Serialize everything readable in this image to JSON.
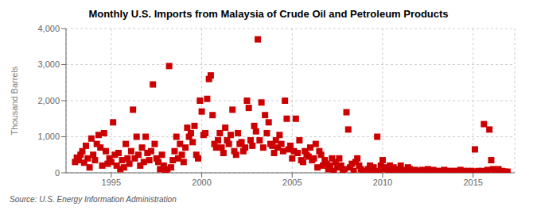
{
  "chart_data": {
    "type": "scatter",
    "title": "Monthly U.S. Imports from Malaysia of Crude Oil and Petroleum Products",
    "ylabel": "Thousand Barrels",
    "annotations": [
      "Source: U.S. Energy Information Administration"
    ],
    "color": "#cc0000",
    "marker": "square",
    "grid": true,
    "xlim": [
      1992.5,
      2017.3
    ],
    "xticks": [
      1995,
      2000,
      2005,
      2010,
      2015
    ],
    "ylim": [
      0,
      4000
    ],
    "yticks": [
      0,
      {
        "value": 1000,
        "label": "1,000"
      },
      {
        "value": 2000,
        "label": "2,000"
      },
      {
        "value": 3000,
        "label": "3,000"
      },
      {
        "value": 4000,
        "label": "4,000"
      }
    ],
    "x": [
      1993.0,
      1993.1,
      1993.2,
      1993.3,
      1993.4,
      1993.5,
      1993.6,
      1993.7,
      1993.8,
      1993.9,
      1994.0,
      1994.1,
      1994.2,
      1994.3,
      1994.4,
      1994.5,
      1994.6,
      1994.7,
      1994.8,
      1994.9,
      1995.0,
      1995.1,
      1995.2,
      1995.3,
      1995.4,
      1995.5,
      1995.6,
      1995.7,
      1995.8,
      1995.9,
      1996.0,
      1996.1,
      1996.2,
      1996.3,
      1996.4,
      1996.5,
      1996.6,
      1996.7,
      1996.8,
      1996.9,
      1997.0,
      1997.1,
      1997.2,
      1997.3,
      1997.4,
      1997.5,
      1997.6,
      1997.7,
      1997.8,
      1997.9,
      1998.0,
      1998.1,
      1998.2,
      1998.3,
      1998.4,
      1998.5,
      1998.6,
      1998.7,
      1998.8,
      1998.9,
      1999.0,
      1999.1,
      1999.2,
      1999.3,
      1999.4,
      1999.5,
      1999.6,
      1999.7,
      1999.8,
      1999.9,
      2000.0,
      2000.1,
      2000.2,
      2000.3,
      2000.4,
      2000.5,
      2000.6,
      2000.7,
      2000.8,
      2000.9,
      2001.0,
      2001.1,
      2001.2,
      2001.3,
      2001.4,
      2001.5,
      2001.6,
      2001.7,
      2001.8,
      2001.9,
      2002.0,
      2002.1,
      2002.2,
      2002.3,
      2002.4,
      2002.5,
      2002.6,
      2002.7,
      2002.8,
      2002.9,
      2003.0,
      2003.1,
      2003.2,
      2003.3,
      2003.4,
      2003.5,
      2003.6,
      2003.7,
      2003.8,
      2003.9,
      2004.0,
      2004.1,
      2004.2,
      2004.3,
      2004.4,
      2004.5,
      2004.6,
      2004.7,
      2004.8,
      2004.9,
      2005.0,
      2005.1,
      2005.2,
      2005.3,
      2005.4,
      2005.5,
      2005.6,
      2005.7,
      2005.8,
      2005.9,
      2006.0,
      2006.1,
      2006.2,
      2006.3,
      2006.4,
      2006.5,
      2006.6,
      2006.7,
      2006.8,
      2006.9,
      2007.0,
      2007.1,
      2007.2,
      2007.3,
      2007.4,
      2007.5,
      2007.6,
      2007.7,
      2007.8,
      2007.9,
      2008.0,
      2008.1,
      2008.2,
      2008.3,
      2008.4,
      2008.5,
      2008.6,
      2008.7,
      2008.8,
      2008.9,
      2009.0,
      2009.1,
      2009.2,
      2009.3,
      2009.4,
      2009.5,
      2009.6,
      2009.7,
      2009.8,
      2009.9,
      2010.0,
      2010.1,
      2010.2,
      2010.3,
      2010.4,
      2010.5,
      2010.6,
      2010.7,
      2010.8,
      2010.9,
      2011.0,
      2011.1,
      2011.2,
      2011.3,
      2011.4,
      2011.5,
      2011.6,
      2011.7,
      2011.8,
      2011.9,
      2012.0,
      2012.1,
      2012.2,
      2012.3,
      2012.4,
      2012.5,
      2012.6,
      2012.7,
      2012.8,
      2012.9,
      2013.0,
      2013.1,
      2013.2,
      2013.3,
      2013.4,
      2013.5,
      2013.6,
      2013.7,
      2013.8,
      2013.9,
      2014.0,
      2014.1,
      2014.2,
      2014.3,
      2014.4,
      2014.5,
      2014.6,
      2014.7,
      2014.8,
      2014.9,
      2015.0,
      2015.1,
      2015.2,
      2015.3,
      2015.4,
      2015.5,
      2015.6,
      2015.7,
      2015.8,
      2015.9,
      2016.0,
      2016.1,
      2016.2,
      2016.3,
      2016.4,
      2016.5,
      2016.6,
      2016.7,
      2016.8,
      2016.9
    ],
    "values": [
      300,
      420,
      350,
      500,
      600,
      280,
      750,
      400,
      150,
      950,
      500,
      350,
      800,
      1050,
      700,
      200,
      1100,
      600,
      250,
      400,
      300,
      1400,
      500,
      200,
      550,
      100,
      350,
      150,
      800,
      400,
      250,
      600,
      1750,
      400,
      1000,
      500,
      200,
      700,
      300,
      1000,
      550,
      350,
      600,
      2450,
      800,
      400,
      300,
      100,
      500,
      200,
      50,
      100,
      2960,
      150,
      350,
      600,
      1000,
      400,
      800,
      500,
      300,
      700,
      1250,
      1000,
      1100,
      850,
      1300,
      500,
      400,
      2000,
      1700,
      1050,
      1100,
      2050,
      2600,
      2700,
      1600,
      800,
      700,
      900,
      1100,
      700,
      550,
      1250,
      900,
      800,
      1050,
      1750,
      600,
      500,
      1100,
      800,
      850,
      600,
      700,
      2000,
      1800,
      900,
      750,
      1300,
      1150,
      3700,
      900,
      1950,
      700,
      1600,
      1100,
      1400,
      800,
      750,
      550,
      900,
      700,
      1050,
      800,
      600,
      2000,
      1500,
      650,
      750,
      400,
      600,
      1500,
      550,
      900,
      350,
      300,
      600,
      500,
      450,
      700,
      350,
      400,
      800,
      150,
      600,
      500,
      200,
      350,
      250,
      100,
      200,
      400,
      50,
      300,
      150,
      400,
      200,
      50,
      100,
      1680,
      1200,
      150,
      250,
      50,
      300,
      400,
      200,
      100,
      50,
      30,
      50,
      100,
      200,
      80,
      150,
      50,
      1000,
      30,
      200,
      350,
      100,
      150,
      50,
      200,
      80,
      150,
      50,
      30,
      100,
      200,
      50,
      80,
      30,
      150,
      100,
      50,
      30,
      80,
      50,
      50,
      30,
      80,
      50,
      30,
      100,
      50,
      30,
      80,
      30,
      50,
      30,
      50,
      30,
      80,
      50,
      30,
      50,
      30,
      50,
      30,
      50,
      30,
      80,
      30,
      50,
      30,
      50,
      30,
      50,
      30,
      650,
      30,
      50,
      30,
      50,
      1350,
      30,
      80,
      1200,
      350,
      100,
      80,
      50,
      100,
      30,
      50,
      30,
      30,
      30
    ]
  }
}
